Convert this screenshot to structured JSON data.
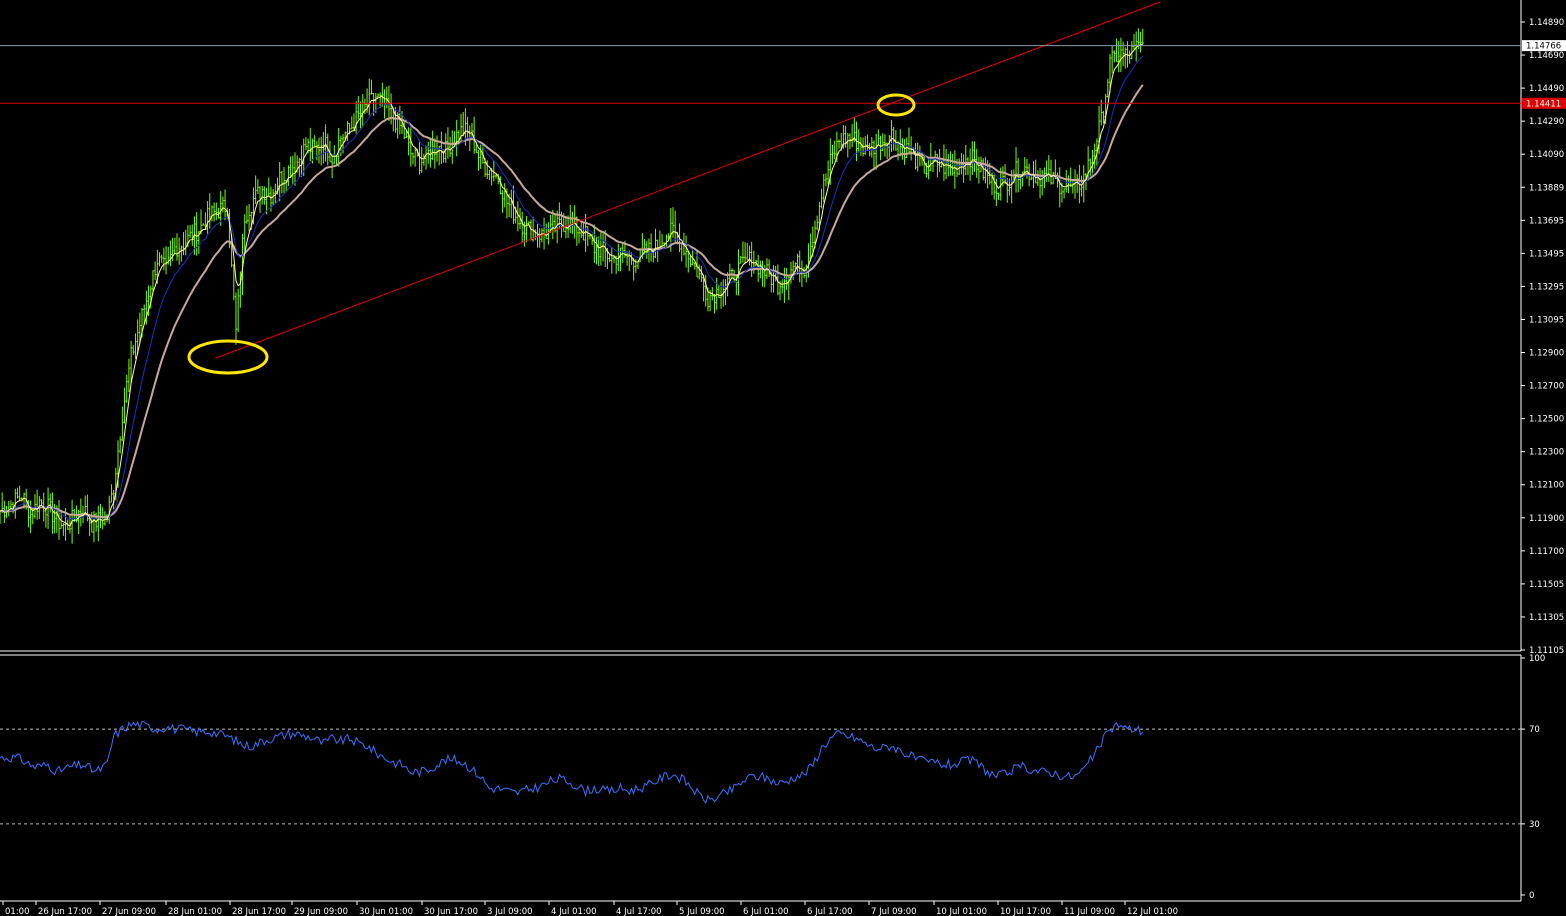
{
  "colors": {
    "background": "#000000",
    "frame": "#ffffff",
    "bar": "#7cfc00",
    "ma_fast": "#ffff99",
    "ma_mid": "#1a2fc8",
    "ma_slow": "#c8a89a",
    "trendline": "#e00000",
    "resistance": "#e00000",
    "bid_line": "#8a9aa8",
    "highlight": "#ffe600",
    "rsi": "#3a72ff",
    "rsi_level": "#bdbdbd",
    "label_text": "#ffffff"
  },
  "chart_data": [
    {
      "type": "ohlc",
      "name": "price",
      "ylim": [
        1.1105,
        1.1501
      ],
      "y_ticks": [
        "1.14890",
        "1.14690",
        "1.14490",
        "1.14290",
        "1.14090",
        "1.13889",
        "1.13695",
        "1.13495",
        "1.13295",
        "1.13095",
        "1.12900",
        "1.12700",
        "1.12500",
        "1.12300",
        "1.12100",
        "1.11900",
        "1.11700",
        "1.11505",
        "1.11305",
        "1.11105"
      ],
      "x_labels": [
        "01:00",
        "26 Jun 17:00",
        "27 Jun 09:00",
        "28 Jun 01:00",
        "28 Jun 17:00",
        "29 Jun 09:00",
        "30 Jun 01:00",
        "30 Jun 17:00",
        "3 Jul 09:00",
        "4 Jul 01:00",
        "4 Jul 17:00",
        "5 Jul 09:00",
        "6 Jul 01:00",
        "6 Jul 17:00",
        "7 Jul 09:00",
        "10 Jul 01:00",
        "10 Jul 17:00",
        "11 Jul 09:00",
        "12 Jul 01:00"
      ],
      "current_price": 1.14766,
      "current_price_label": "1.14766",
      "resistance_level": 1.14411,
      "resistance_label": "1.14411",
      "approx_close_path": [
        [
          0,
          1.119
        ],
        [
          5,
          1.1194
        ],
        [
          10,
          1.12
        ],
        [
          14,
          1.1188
        ],
        [
          18,
          1.1196
        ],
        [
          22,
          1.1192
        ],
        [
          26,
          1.1184
        ],
        [
          30,
          1.118
        ],
        [
          34,
          1.1186
        ],
        [
          38,
          1.1192
        ],
        [
          42,
          1.1182
        ],
        [
          46,
          1.1185
        ],
        [
          49,
          1.1186
        ],
        [
          52,
          1.1205
        ],
        [
          56,
          1.125
        ],
        [
          60,
          1.1285
        ],
        [
          64,
          1.1305
        ],
        [
          68,
          1.1325
        ],
        [
          72,
          1.1345
        ],
        [
          76,
          1.1338
        ],
        [
          80,
          1.1352
        ],
        [
          84,
          1.1355
        ],
        [
          88,
          1.136
        ],
        [
          92,
          1.1365
        ],
        [
          96,
          1.1372
        ],
        [
          100,
          1.1375
        ],
        [
          104,
          1.1378
        ],
        [
          108,
          1.13
        ],
        [
          112,
          1.1372
        ],
        [
          116,
          1.1382
        ],
        [
          120,
          1.1388
        ],
        [
          124,
          1.1385
        ],
        [
          128,
          1.1395
        ],
        [
          132,
          1.14
        ],
        [
          136,
          1.1405
        ],
        [
          140,
          1.1415
        ],
        [
          144,
          1.1412
        ],
        [
          148,
          1.1418
        ],
        [
          152,
          1.1408
        ],
        [
          156,
          1.142
        ],
        [
          160,
          1.1425
        ],
        [
          164,
          1.1433
        ],
        [
          168,
          1.144
        ],
        [
          172,
          1.1445
        ],
        [
          176,
          1.144
        ],
        [
          180,
          1.1432
        ],
        [
          184,
          1.1425
        ],
        [
          188,
          1.141
        ],
        [
          192,
          1.1405
        ],
        [
          196,
          1.141
        ],
        [
          200,
          1.1415
        ],
        [
          204,
          1.1412
        ],
        [
          208,
          1.142
        ],
        [
          212,
          1.1425
        ],
        [
          216,
          1.142
        ],
        [
          220,
          1.1405
        ],
        [
          224,
          1.14
        ],
        [
          228,
          1.1395
        ],
        [
          232,
          1.138
        ],
        [
          236,
          1.1372
        ],
        [
          240,
          1.1365
        ],
        [
          244,
          1.1362
        ],
        [
          248,
          1.136
        ],
        [
          252,
          1.1362
        ],
        [
          256,
          1.1366
        ],
        [
          260,
          1.1368
        ],
        [
          264,
          1.1364
        ],
        [
          268,
          1.136
        ],
        [
          272,
          1.1352
        ],
        [
          276,
          1.135
        ],
        [
          280,
          1.1345
        ],
        [
          284,
          1.1348
        ],
        [
          288,
          1.1346
        ],
        [
          292,
          1.1345
        ],
        [
          296,
          1.135
        ],
        [
          300,
          1.1352
        ],
        [
          304,
          1.136
        ],
        [
          308,
          1.1362
        ],
        [
          312,
          1.1355
        ],
        [
          316,
          1.1345
        ],
        [
          320,
          1.1335
        ],
        [
          324,
          1.1322
        ],
        [
          328,
          1.1325
        ],
        [
          332,
          1.133
        ],
        [
          336,
          1.1335
        ],
        [
          340,
          1.1342
        ],
        [
          344,
          1.1345
        ],
        [
          348,
          1.134
        ],
        [
          352,
          1.1335
        ],
        [
          356,
          1.133
        ],
        [
          360,
          1.1335
        ],
        [
          364,
          1.1342
        ],
        [
          368,
          1.134
        ],
        [
          372,
          1.136
        ],
        [
          376,
          1.1385
        ],
        [
          380,
          1.1405
        ],
        [
          384,
          1.1418
        ],
        [
          388,
          1.142
        ],
        [
          392,
          1.1418
        ],
        [
          396,
          1.1412
        ],
        [
          400,
          1.1415
        ],
        [
          404,
          1.1418
        ],
        [
          408,
          1.1422
        ],
        [
          412,
          1.1415
        ],
        [
          416,
          1.1412
        ],
        [
          420,
          1.1405
        ],
        [
          424,
          1.14
        ],
        [
          428,
          1.1405
        ],
        [
          432,
          1.1402
        ],
        [
          436,
          1.14
        ],
        [
          440,
          1.1405
        ],
        [
          444,
          1.1408
        ],
        [
          448,
          1.1402
        ],
        [
          452,
          1.1395
        ],
        [
          456,
          1.139
        ],
        [
          460,
          1.1392
        ],
        [
          464,
          1.1398
        ],
        [
          468,
          1.1402
        ],
        [
          472,
          1.1398
        ],
        [
          476,
          1.1396
        ],
        [
          480,
          1.1395
        ],
        [
          484,
          1.1392
        ],
        [
          488,
          1.139
        ],
        [
          492,
          1.1388
        ],
        [
          496,
          1.1395
        ],
        [
          500,
          1.141
        ],
        [
          504,
          1.143
        ],
        [
          508,
          1.1465
        ],
        [
          512,
          1.1472
        ],
        [
          516,
          1.147
        ],
        [
          520,
          1.1475
        ],
        [
          523,
          1.1477
        ]
      ]
    },
    {
      "type": "line",
      "name": "rsi",
      "ylim": [
        0,
        100
      ],
      "y_ticks": [
        "100",
        "70",
        "30",
        "0"
      ],
      "levels": [
        70,
        30
      ],
      "approx_values": [
        [
          0,
          58
        ],
        [
          8,
          58
        ],
        [
          16,
          54
        ],
        [
          22,
          55
        ],
        [
          26,
          52
        ],
        [
          32,
          54
        ],
        [
          38,
          55
        ],
        [
          44,
          52
        ],
        [
          49,
          55
        ],
        [
          52,
          67
        ],
        [
          56,
          70
        ],
        [
          60,
          72
        ],
        [
          64,
          72
        ],
        [
          68,
          71
        ],
        [
          72,
          70
        ],
        [
          76,
          71
        ],
        [
          80,
          70
        ],
        [
          84,
          70
        ],
        [
          88,
          69
        ],
        [
          92,
          69
        ],
        [
          96,
          69
        ],
        [
          100,
          68
        ],
        [
          104,
          67
        ],
        [
          108,
          65
        ],
        [
          112,
          63
        ],
        [
          116,
          63
        ],
        [
          120,
          65
        ],
        [
          124,
          66
        ],
        [
          128,
          67
        ],
        [
          132,
          68
        ],
        [
          136,
          68
        ],
        [
          140,
          67
        ],
        [
          144,
          66
        ],
        [
          148,
          64
        ],
        [
          152,
          66
        ],
        [
          156,
          65
        ],
        [
          160,
          66
        ],
        [
          164,
          64
        ],
        [
          168,
          63
        ],
        [
          172,
          60
        ],
        [
          176,
          58
        ],
        [
          180,
          56
        ],
        [
          184,
          55
        ],
        [
          188,
          52
        ],
        [
          192,
          52
        ],
        [
          196,
          53
        ],
        [
          200,
          55
        ],
        [
          204,
          57
        ],
        [
          208,
          57
        ],
        [
          212,
          56
        ],
        [
          216,
          53
        ],
        [
          220,
          50
        ],
        [
          224,
          45
        ],
        [
          228,
          45
        ],
        [
          232,
          44
        ],
        [
          236,
          43
        ],
        [
          240,
          44
        ],
        [
          244,
          45
        ],
        [
          248,
          46
        ],
        [
          252,
          48
        ],
        [
          256,
          49
        ],
        [
          260,
          48
        ],
        [
          264,
          46
        ],
        [
          268,
          44
        ],
        [
          272,
          45
        ],
        [
          276,
          44
        ],
        [
          280,
          44
        ],
        [
          284,
          45
        ],
        [
          288,
          44
        ],
        [
          292,
          45
        ],
        [
          296,
          46
        ],
        [
          300,
          48
        ],
        [
          304,
          50
        ],
        [
          308,
          51
        ],
        [
          312,
          49
        ],
        [
          316,
          46
        ],
        [
          320,
          42
        ],
        [
          324,
          40
        ],
        [
          328,
          41
        ],
        [
          332,
          43
        ],
        [
          336,
          45
        ],
        [
          340,
          48
        ],
        [
          344,
          50
        ],
        [
          348,
          50
        ],
        [
          352,
          49
        ],
        [
          356,
          47
        ],
        [
          360,
          48
        ],
        [
          364,
          50
        ],
        [
          368,
          51
        ],
        [
          372,
          55
        ],
        [
          376,
          62
        ],
        [
          380,
          66
        ],
        [
          384,
          68
        ],
        [
          388,
          67
        ],
        [
          392,
          66
        ],
        [
          396,
          64
        ],
        [
          400,
          62
        ],
        [
          404,
          62
        ],
        [
          408,
          63
        ],
        [
          412,
          61
        ],
        [
          416,
          59
        ],
        [
          420,
          57
        ],
        [
          424,
          56
        ],
        [
          428,
          56
        ],
        [
          432,
          55
        ],
        [
          436,
          55
        ],
        [
          440,
          56
        ],
        [
          444,
          57
        ],
        [
          448,
          55
        ],
        [
          452,
          52
        ],
        [
          456,
          50
        ],
        [
          460,
          51
        ],
        [
          464,
          53
        ],
        [
          468,
          54
        ],
        [
          472,
          53
        ],
        [
          476,
          52
        ],
        [
          480,
          52
        ],
        [
          484,
          51
        ],
        [
          488,
          50
        ],
        [
          492,
          50
        ],
        [
          496,
          53
        ],
        [
          500,
          58
        ],
        [
          504,
          64
        ],
        [
          508,
          70
        ],
        [
          512,
          72
        ],
        [
          516,
          70
        ],
        [
          520,
          70
        ],
        [
          523,
          69
        ]
      ]
    }
  ]
}
